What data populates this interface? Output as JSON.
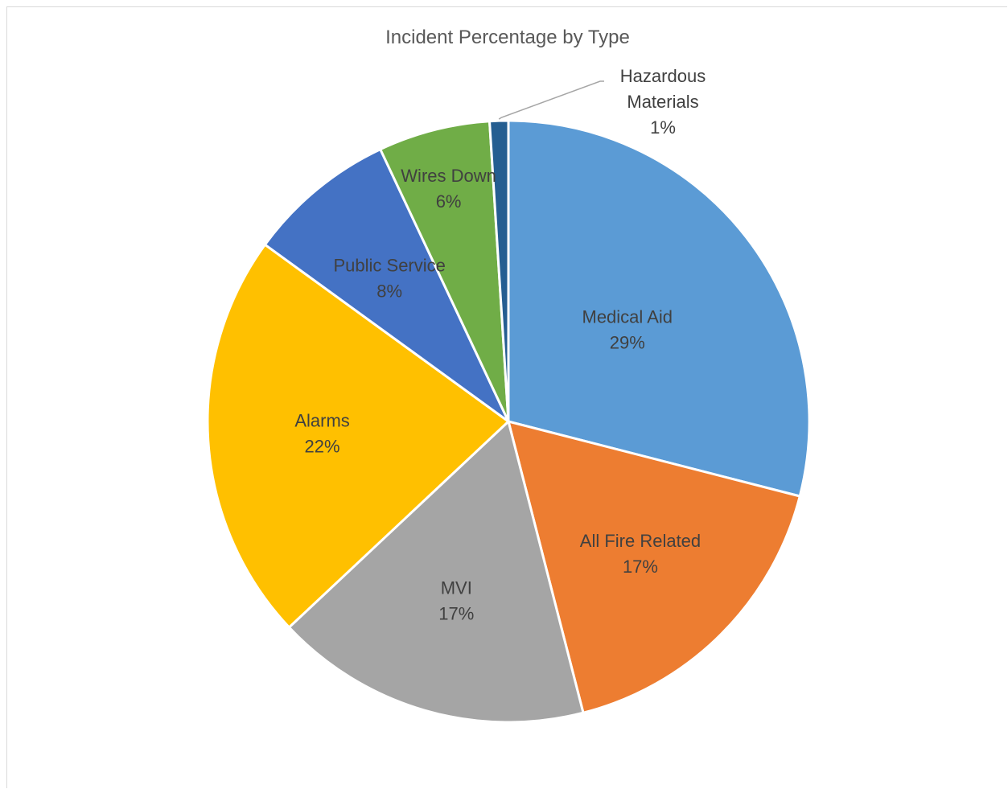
{
  "chart_data": {
    "type": "pie",
    "title": "Incident Percentage by Type",
    "slices": [
      {
        "label": "Medical Aid",
        "value": 29,
        "value_label": "29%",
        "color": "#5B9BD5"
      },
      {
        "label": "All Fire Related",
        "value": 17,
        "value_label": "17%",
        "color": "#ED7D31"
      },
      {
        "label": "MVI",
        "value": 17,
        "value_label": "17%",
        "color": "#A5A5A5"
      },
      {
        "label": "Alarms",
        "value": 22,
        "value_label": "22%",
        "color": "#FFC000"
      },
      {
        "label": "Public Service",
        "value": 8,
        "value_label": "8%",
        "color": "#4472C4"
      },
      {
        "label": "Wires Down",
        "value": 6,
        "value_label": "6%",
        "color": "#70AD47"
      },
      {
        "label": "Hazardous Materials",
        "label_lines": [
          "Hazardous",
          "Materials"
        ],
        "value": 1,
        "value_label": "1%",
        "color": "#255E91"
      }
    ],
    "slice_border_color": "#ffffff",
    "leader_line_color": "#a6a6a6",
    "label_color": "#404040",
    "title_color": "#595959"
  }
}
